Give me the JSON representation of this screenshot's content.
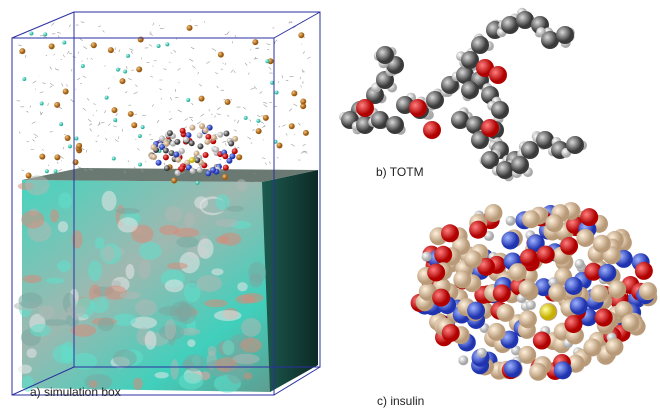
{
  "panels": [
    {
      "label": "a) simulation box"
    },
    {
      "label": "b) TOTM"
    },
    {
      "label": "c) insulin"
    }
  ]
}
